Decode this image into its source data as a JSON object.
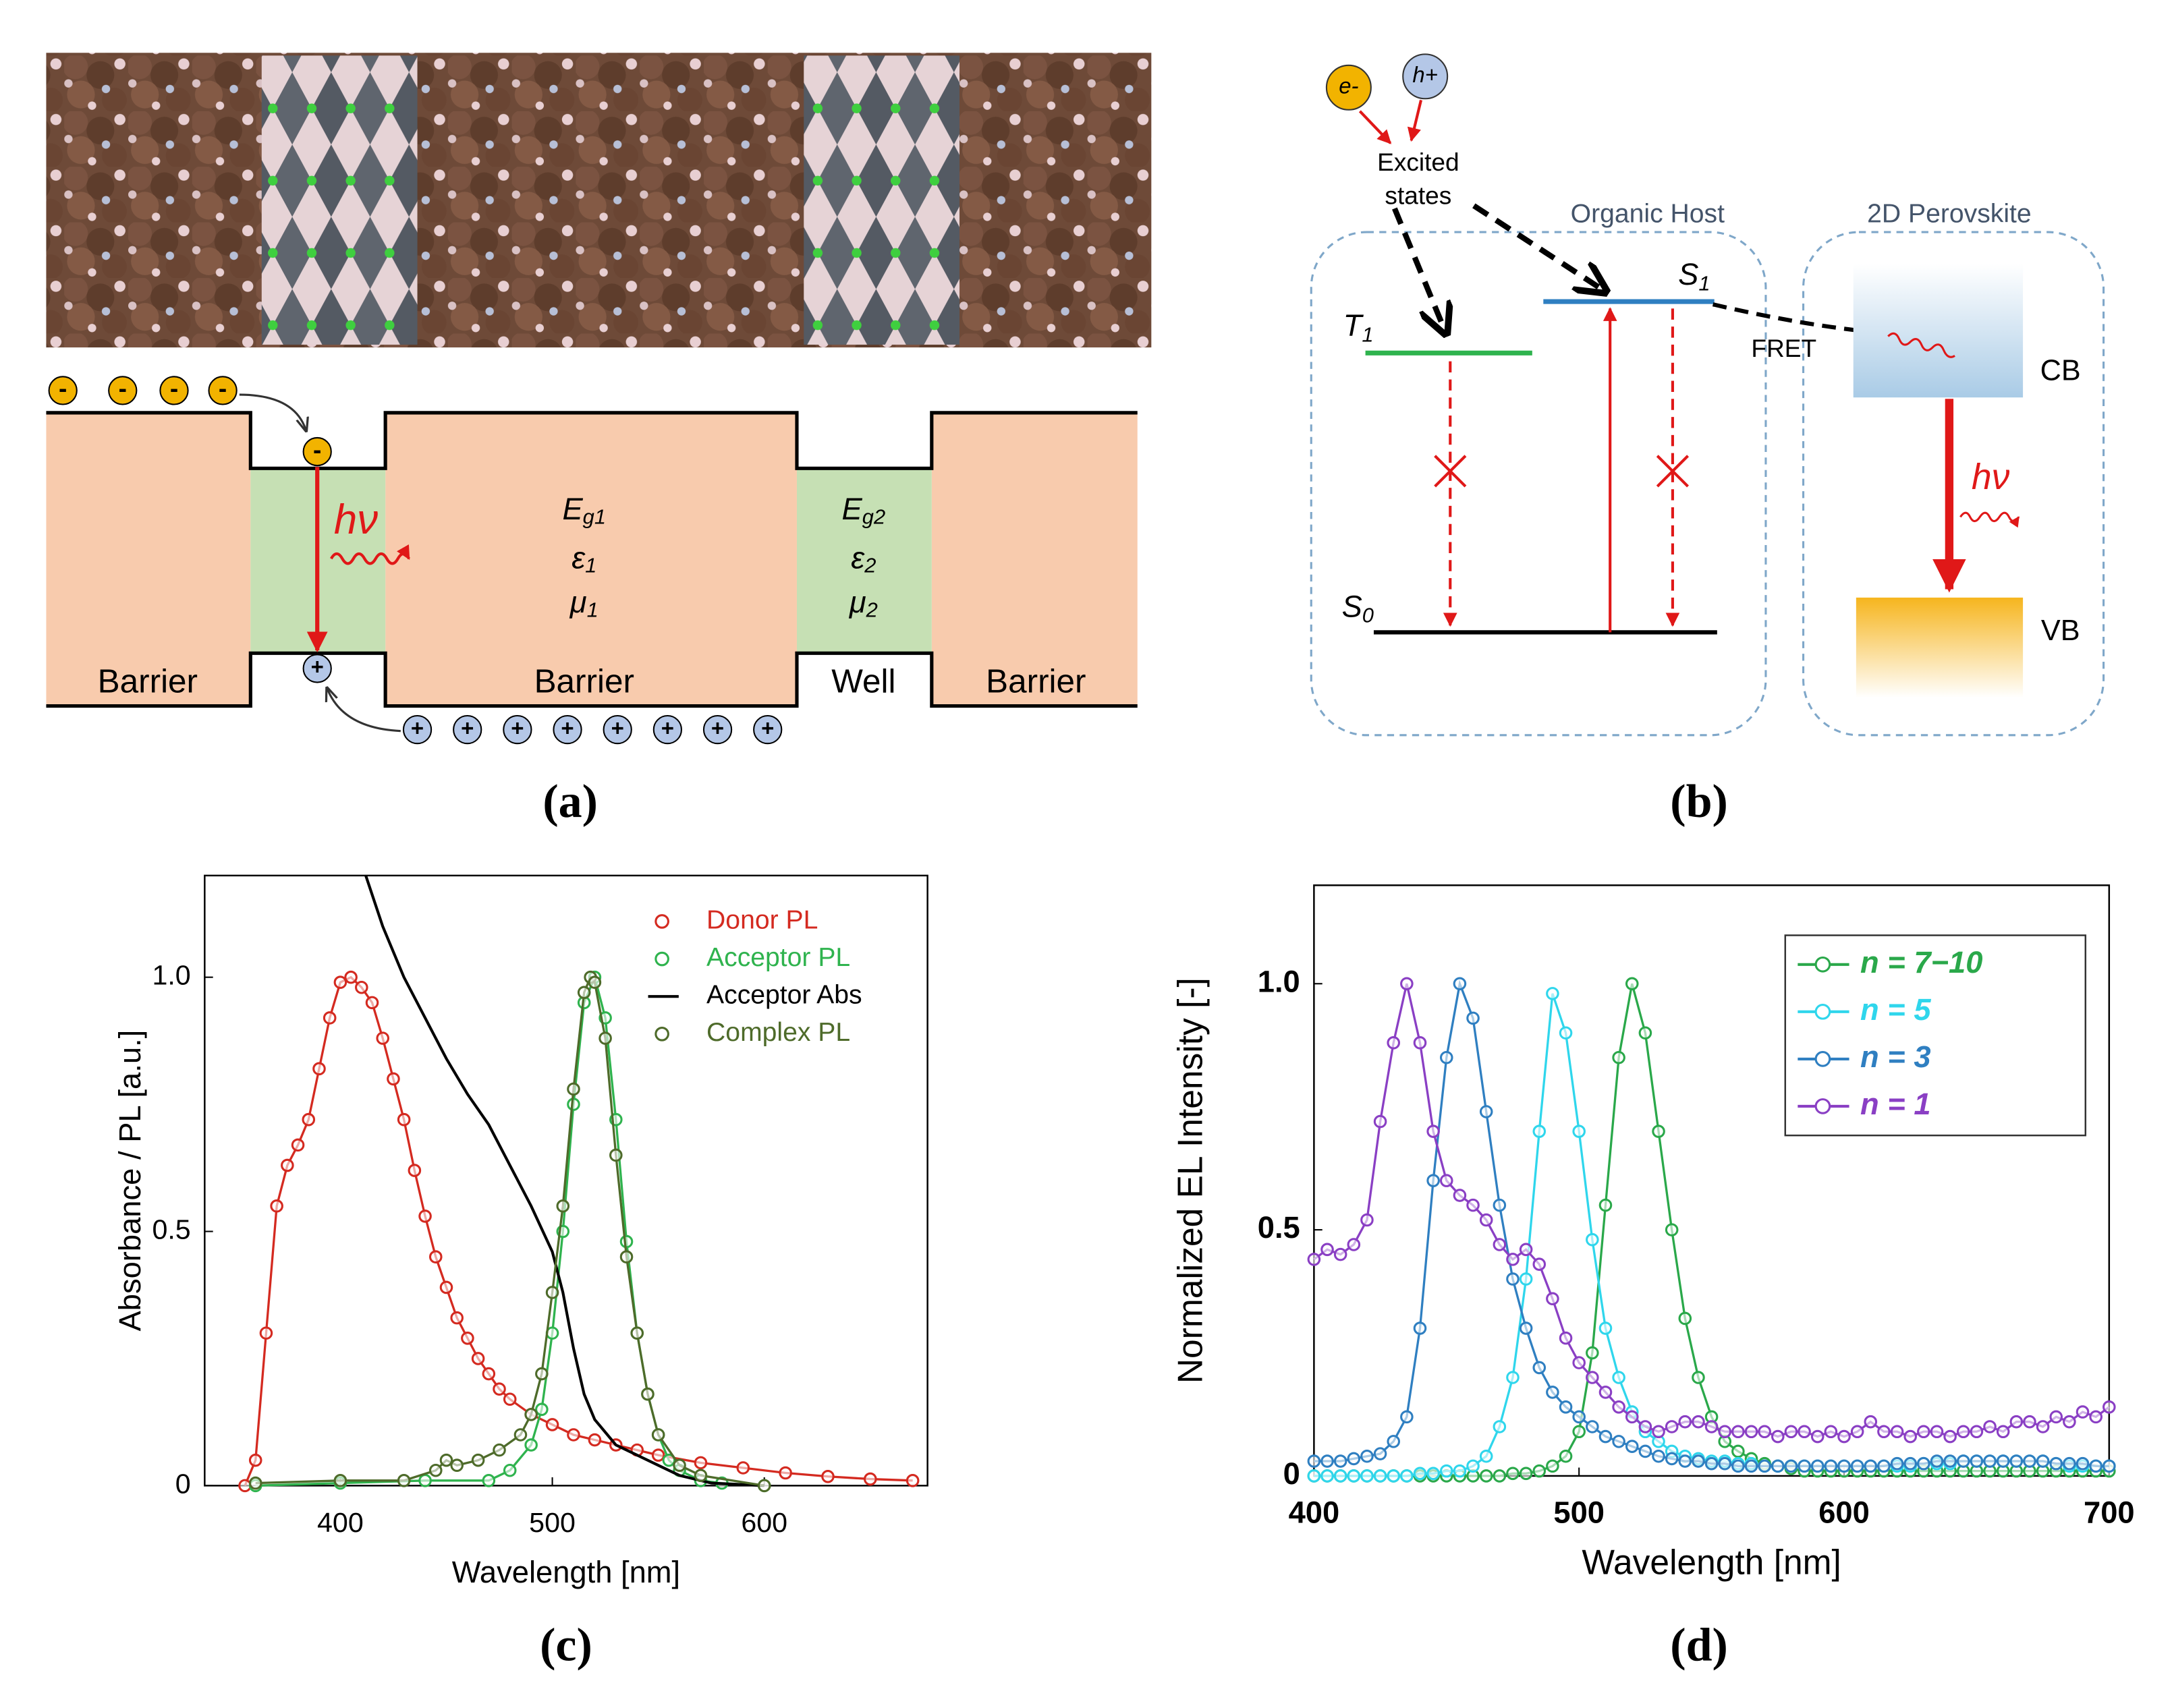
{
  "panel_a": {
    "label": "(a)",
    "electron": "-",
    "hole": "+",
    "photon": "hν",
    "layer_labels": [
      "Barrier",
      "Barrier",
      "Well",
      "Barrier"
    ],
    "barrier_params": [
      {
        "base": "E",
        "sub": "g1"
      },
      {
        "base": "ε",
        "sub": "1"
      },
      {
        "base": "μ",
        "sub": "1"
      }
    ],
    "well_params": [
      {
        "base": "E",
        "sub": "g2"
      },
      {
        "base": "ε",
        "sub": "2"
      },
      {
        "base": "μ",
        "sub": "2"
      }
    ]
  },
  "panel_b": {
    "label": "(b)",
    "electron": "e-",
    "hole": "h+",
    "excited_states": [
      "Excited",
      "states"
    ],
    "organic_host": "Organic Host",
    "perovskite": "2D Perovskite",
    "T1": {
      "base": "T",
      "sub": "1"
    },
    "S1": {
      "base": "S",
      "sub": "1"
    },
    "S0": {
      "base": "S",
      "sub": "0"
    },
    "fret": "FRET",
    "cb": "CB",
    "vb": "VB",
    "photon": "hν"
  },
  "panel_labels": {
    "c": "(c)",
    "d": "(d)"
  },
  "chart_data": [
    {
      "type": "line",
      "xlabel": "Wavelength [nm]",
      "ylabel": "Absorbance / PL [a.u.]",
      "xlim": [
        336,
        677
      ],
      "ylim": [
        0,
        1.2
      ],
      "xticks": [
        400,
        500,
        600
      ],
      "yticks": [
        0,
        0.5,
        {
          "value": 1,
          "label": "1.0"
        }
      ],
      "legend": "upper right",
      "legend_frame": false,
      "series": [
        {
          "name": "Donor PL",
          "color": "#d42a20",
          "markers": true,
          "x": [
            355,
            360,
            365,
            370,
            375,
            380,
            385,
            390,
            395,
            400,
            405,
            410,
            415,
            420,
            425,
            430,
            435,
            440,
            445,
            450,
            455,
            460,
            465,
            470,
            475,
            480,
            490,
            500,
            510,
            520,
            530,
            540,
            550,
            570,
            590,
            610,
            630,
            650,
            670
          ],
          "values": [
            0,
            0.05,
            0.3,
            0.55,
            0.63,
            0.67,
            0.72,
            0.82,
            0.92,
            0.99,
            1.0,
            0.98,
            0.95,
            0.88,
            0.8,
            0.72,
            0.62,
            0.53,
            0.45,
            0.39,
            0.33,
            0.29,
            0.25,
            0.22,
            0.19,
            0.17,
            0.14,
            0.12,
            0.1,
            0.09,
            0.08,
            0.07,
            0.06,
            0.045,
            0.035,
            0.025,
            0.018,
            0.013,
            0.01
          ]
        },
        {
          "name": "Acceptor PL",
          "color": "#2fb34e",
          "markers": true,
          "x": [
            360,
            400,
            440,
            470,
            480,
            490,
            495,
            500,
            505,
            510,
            515,
            520,
            525,
            530,
            535,
            540,
            545,
            550,
            555,
            560,
            570,
            580,
            600
          ],
          "values": [
            0,
            0.005,
            0.01,
            0.01,
            0.03,
            0.08,
            0.15,
            0.3,
            0.5,
            0.75,
            0.95,
            1.0,
            0.92,
            0.72,
            0.48,
            0.3,
            0.18,
            0.1,
            0.05,
            0.03,
            0.01,
            0.005,
            0
          ]
        },
        {
          "name": "Acceptor Abs",
          "color": "#000000",
          "markers": false,
          "x": [
            412,
            420,
            430,
            440,
            450,
            460,
            470,
            480,
            490,
            500,
            505,
            510,
            515,
            520,
            530,
            540,
            550,
            560,
            575,
            600
          ],
          "values": [
            1.2,
            1.1,
            1.0,
            0.92,
            0.84,
            0.77,
            0.71,
            0.63,
            0.55,
            0.46,
            0.38,
            0.27,
            0.18,
            0.13,
            0.08,
            0.06,
            0.04,
            0.02,
            0.005,
            0
          ]
        },
        {
          "name": "Complex PL",
          "color": "#4e6b2a",
          "markers": true,
          "x": [
            360,
            400,
            430,
            445,
            450,
            455,
            465,
            475,
            485,
            490,
            495,
            500,
            505,
            510,
            515,
            518,
            520,
            525,
            530,
            535,
            540,
            545,
            550,
            560,
            570,
            600
          ],
          "values": [
            0.005,
            0.01,
            0.01,
            0.03,
            0.05,
            0.04,
            0.05,
            0.07,
            0.1,
            0.14,
            0.22,
            0.38,
            0.55,
            0.78,
            0.97,
            1.0,
            0.99,
            0.88,
            0.65,
            0.45,
            0.3,
            0.18,
            0.1,
            0.04,
            0.02,
            0
          ]
        }
      ]
    },
    {
      "type": "line",
      "xlabel": "Wavelength [nm]",
      "ylabel": "Normalized EL Intensity [-]",
      "xlim": [
        400,
        700
      ],
      "ylim": [
        0,
        1.2
      ],
      "xticks": [
        400,
        500,
        600,
        700
      ],
      "yticks": [
        0,
        0.5,
        {
          "value": 1,
          "label": "1.0"
        }
      ],
      "legend": "upper right",
      "legend_frame": true,
      "x": [
        400,
        405,
        410,
        415,
        420,
        425,
        430,
        435,
        440,
        445,
        450,
        455,
        460,
        465,
        470,
        475,
        480,
        485,
        490,
        495,
        500,
        505,
        510,
        515,
        520,
        525,
        530,
        535,
        540,
        545,
        550,
        555,
        560,
        565,
        570,
        575,
        580,
        585,
        590,
        595,
        600,
        605,
        610,
        615,
        620,
        625,
        630,
        635,
        640,
        645,
        650,
        655,
        660,
        665,
        670,
        675,
        680,
        685,
        690,
        695,
        700
      ],
      "series": [
        {
          "name": "n = 7−10",
          "color": "#2aa84a",
          "markers": true,
          "values": [
            0,
            0,
            0,
            0,
            0,
            0,
            0,
            0,
            0,
            0,
            0,
            0,
            0,
            0,
            0,
            0.005,
            0.005,
            0.01,
            0.02,
            0.04,
            0.09,
            0.25,
            0.55,
            0.85,
            1.0,
            0.9,
            0.7,
            0.5,
            0.32,
            0.2,
            0.12,
            0.07,
            0.05,
            0.035,
            0.025,
            0.02,
            0.015,
            0.01,
            0.01,
            0.01,
            0.01,
            0.01,
            0.01,
            0.01,
            0.01,
            0.01,
            0.01,
            0.01,
            0.01,
            0.01,
            0.01,
            0.01,
            0.01,
            0.01,
            0.01,
            0.01,
            0.01,
            0.01,
            0.01,
            0.01,
            0.01
          ]
        },
        {
          "name": "n = 5",
          "color": "#2fd6ec",
          "markers": true,
          "values": [
            0,
            0,
            0,
            0,
            0,
            0,
            0,
            0,
            0.005,
            0.005,
            0.01,
            0.01,
            0.02,
            0.04,
            0.1,
            0.2,
            0.4,
            0.7,
            0.98,
            0.9,
            0.7,
            0.48,
            0.3,
            0.2,
            0.13,
            0.09,
            0.07,
            0.05,
            0.04,
            0.035,
            0.03,
            0.03,
            0.025,
            0.025,
            0.02,
            0.02,
            0.02,
            0.02,
            0.02,
            0.02,
            0.02,
            0.02,
            0.02,
            0.02,
            0.02,
            0.02,
            0.025,
            0.025,
            0.025,
            0.03,
            0.03,
            0.03,
            0.03,
            0.03,
            0.03,
            0.03,
            0.025,
            0.02,
            0.02,
            0.02,
            0.02
          ]
        },
        {
          "name": "n = 3",
          "color": "#2f7fc1",
          "markers": true,
          "values": [
            0.03,
            0.03,
            0.03,
            0.035,
            0.04,
            0.045,
            0.07,
            0.12,
            0.3,
            0.6,
            0.85,
            1.0,
            0.93,
            0.74,
            0.55,
            0.4,
            0.3,
            0.22,
            0.17,
            0.14,
            0.12,
            0.1,
            0.08,
            0.07,
            0.06,
            0.05,
            0.04,
            0.035,
            0.03,
            0.03,
            0.025,
            0.025,
            0.02,
            0.02,
            0.02,
            0.02,
            0.02,
            0.02,
            0.02,
            0.02,
            0.02,
            0.02,
            0.02,
            0.02,
            0.025,
            0.025,
            0.025,
            0.03,
            0.03,
            0.03,
            0.03,
            0.03,
            0.03,
            0.03,
            0.03,
            0.03,
            0.025,
            0.025,
            0.025,
            0.02,
            0.02
          ]
        },
        {
          "name": "n = 1",
          "color": "#8a3fc4",
          "markers": true,
          "values": [
            0.44,
            0.46,
            0.45,
            0.47,
            0.52,
            0.72,
            0.88,
            1.0,
            0.88,
            0.7,
            0.6,
            0.57,
            0.55,
            0.52,
            0.47,
            0.44,
            0.46,
            0.43,
            0.36,
            0.28,
            0.23,
            0.2,
            0.17,
            0.14,
            0.12,
            0.1,
            0.09,
            0.1,
            0.11,
            0.11,
            0.1,
            0.09,
            0.09,
            0.09,
            0.09,
            0.08,
            0.09,
            0.09,
            0.08,
            0.09,
            0.08,
            0.09,
            0.11,
            0.09,
            0.09,
            0.08,
            0.09,
            0.09,
            0.08,
            0.09,
            0.09,
            0.1,
            0.09,
            0.11,
            0.11,
            0.1,
            0.12,
            0.11,
            0.13,
            0.12,
            0.14
          ]
        }
      ]
    }
  ]
}
